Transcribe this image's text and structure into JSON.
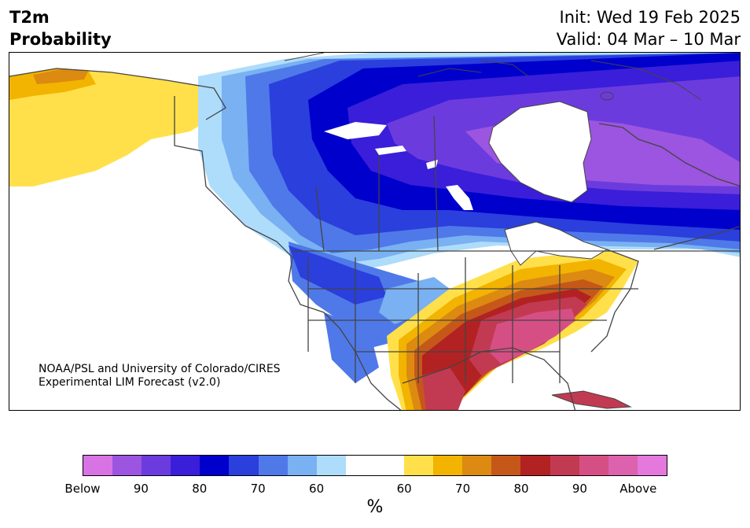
{
  "header": {
    "title_line1": "T2m",
    "title_line2": "Probability",
    "init": "Init: Wed 19 Feb 2025",
    "valid": "Valid: 04 Mar – 10 Mar"
  },
  "credit": {
    "line1": "NOAA/PSL and University of Colorado/CIRES",
    "line2": "Experimental LIM Forecast (v2.0)"
  },
  "legend": {
    "units": "%",
    "below_colors": [
      "#d873e4",
      "#9b55e0",
      "#6c3bde",
      "#3a1ed9",
      "#0000cc",
      "#2a3fdc",
      "#4f79e8",
      "#79b1f2",
      "#aedcfb"
    ],
    "neutral_color": "#ffffff",
    "above_colors": [
      "#ffe04a",
      "#f2b400",
      "#dc8a12",
      "#c55818",
      "#b22222",
      "#c23a52",
      "#d64f84",
      "#dc62ae",
      "#e478dc"
    ],
    "tick_labels": [
      "Below",
      "90",
      "80",
      "70",
      "60",
      "60",
      "70",
      "80",
      "90",
      "Above"
    ]
  },
  "map": {
    "region": "North America",
    "ocean_color": "#ffffff",
    "border_color": "#444444"
  }
}
